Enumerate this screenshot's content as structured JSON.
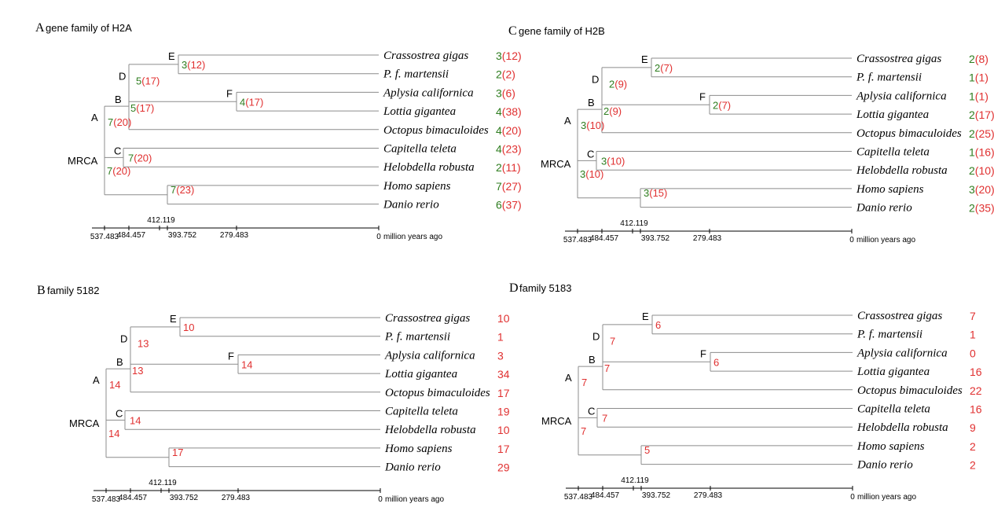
{
  "colors": {
    "green": "#2e7d1f",
    "red": "#e03030",
    "line": "#000000",
    "branch": "#8c8c8c"
  },
  "axis": {
    "unit": "million years ago",
    "ticks": [
      "537.483",
      "484.457",
      "412.119",
      "393.752",
      "279.483",
      "0"
    ]
  },
  "nodes": [
    "A",
    "B",
    "C",
    "D",
    "E",
    "F",
    "MRCA"
  ],
  "species": [
    "Crassostrea gigas",
    "P. f. martensii",
    "Aplysia californica",
    "Lottia gigantea",
    "Octopus bimaculoides",
    "Capitella teleta",
    "Helobdella robusta",
    "Homo sapiens",
    "Danio rerio"
  ],
  "panels": [
    {
      "letter": "A",
      "title": "gene family of H2A",
      "node_counts": {
        "MRCA": {
          "n": "7",
          "p": "(20)"
        },
        "A": {
          "n": "7",
          "p": "(20)"
        },
        "B": {
          "n": "5",
          "p": "(17)"
        },
        "C": {
          "n": "7",
          "p": "(20)"
        },
        "D": {
          "n": "5",
          "p": "(17)"
        },
        "E": {
          "n": "3",
          "p": "(12)"
        },
        "F": {
          "n": "4",
          "p": "(17)"
        },
        "V": {
          "n": "7",
          "p": "(23)"
        }
      },
      "tip_counts": [
        {
          "n": "3",
          "p": "(12)"
        },
        {
          "n": "2",
          "p": "(2)"
        },
        {
          "n": "3",
          "p": "(6)"
        },
        {
          "n": "4",
          "p": "(38)"
        },
        {
          "n": "4",
          "p": "(20)"
        },
        {
          "n": "4",
          "p": "(23)"
        },
        {
          "n": "2",
          "p": "(11)"
        },
        {
          "n": "7",
          "p": "(27)"
        },
        {
          "n": "6",
          "p": "(37)"
        }
      ]
    },
    {
      "letter": "C",
      "title": "gene family of H2B",
      "node_counts": {
        "MRCA": {
          "n": "3",
          "p": "(10)"
        },
        "A": {
          "n": "3",
          "p": "(10)"
        },
        "B": {
          "n": "2",
          "p": "(9)"
        },
        "C": {
          "n": "3",
          "p": "(10)"
        },
        "D": {
          "n": "2",
          "p": "(9)"
        },
        "E": {
          "n": "2",
          "p": "(7)"
        },
        "F": {
          "n": "2",
          "p": "(7)"
        },
        "V": {
          "n": "3",
          "p": "(15)"
        }
      },
      "tip_counts": [
        {
          "n": "2",
          "p": "(8)"
        },
        {
          "n": "1",
          "p": "(1)"
        },
        {
          "n": "1",
          "p": "(1)"
        },
        {
          "n": "2",
          "p": "(17)"
        },
        {
          "n": "2",
          "p": "(25)"
        },
        {
          "n": "1",
          "p": "(16)"
        },
        {
          "n": "2",
          "p": "(10)"
        },
        {
          "n": "3",
          "p": "(20)"
        },
        {
          "n": "2",
          "p": "(35)"
        }
      ]
    },
    {
      "letter": "B",
      "title": "family 5182",
      "node_counts": {
        "MRCA": {
          "n": "",
          "p": "14"
        },
        "A": {
          "n": "",
          "p": "14"
        },
        "B": {
          "n": "",
          "p": "13"
        },
        "C": {
          "n": "",
          "p": "14"
        },
        "D": {
          "n": "",
          "p": "13"
        },
        "E": {
          "n": "",
          "p": "10"
        },
        "F": {
          "n": "",
          "p": "14"
        },
        "V": {
          "n": "",
          "p": "17"
        }
      },
      "tip_counts": [
        {
          "n": "",
          "p": "10"
        },
        {
          "n": "",
          "p": "1"
        },
        {
          "n": "",
          "p": "3"
        },
        {
          "n": "",
          "p": "34"
        },
        {
          "n": "",
          "p": "17"
        },
        {
          "n": "",
          "p": "19"
        },
        {
          "n": "",
          "p": "10"
        },
        {
          "n": "",
          "p": "17"
        },
        {
          "n": "",
          "p": "29"
        }
      ]
    },
    {
      "letter": "D",
      "title": "family 5183",
      "node_counts": {
        "MRCA": {
          "n": "",
          "p": "7"
        },
        "A": {
          "n": "",
          "p": "7"
        },
        "B": {
          "n": "",
          "p": "7"
        },
        "C": {
          "n": "",
          "p": "7"
        },
        "D": {
          "n": "",
          "p": "7"
        },
        "E": {
          "n": "",
          "p": "6"
        },
        "F": {
          "n": "",
          "p": "6"
        },
        "V": {
          "n": "",
          "p": "5"
        }
      },
      "tip_counts": [
        {
          "n": "",
          "p": "7"
        },
        {
          "n": "",
          "p": "1"
        },
        {
          "n": "",
          "p": "0"
        },
        {
          "n": "",
          "p": "16"
        },
        {
          "n": "",
          "p": "22"
        },
        {
          "n": "",
          "p": "16"
        },
        {
          "n": "",
          "p": "9"
        },
        {
          "n": "",
          "p": "2"
        },
        {
          "n": "",
          "p": "2"
        }
      ]
    }
  ]
}
